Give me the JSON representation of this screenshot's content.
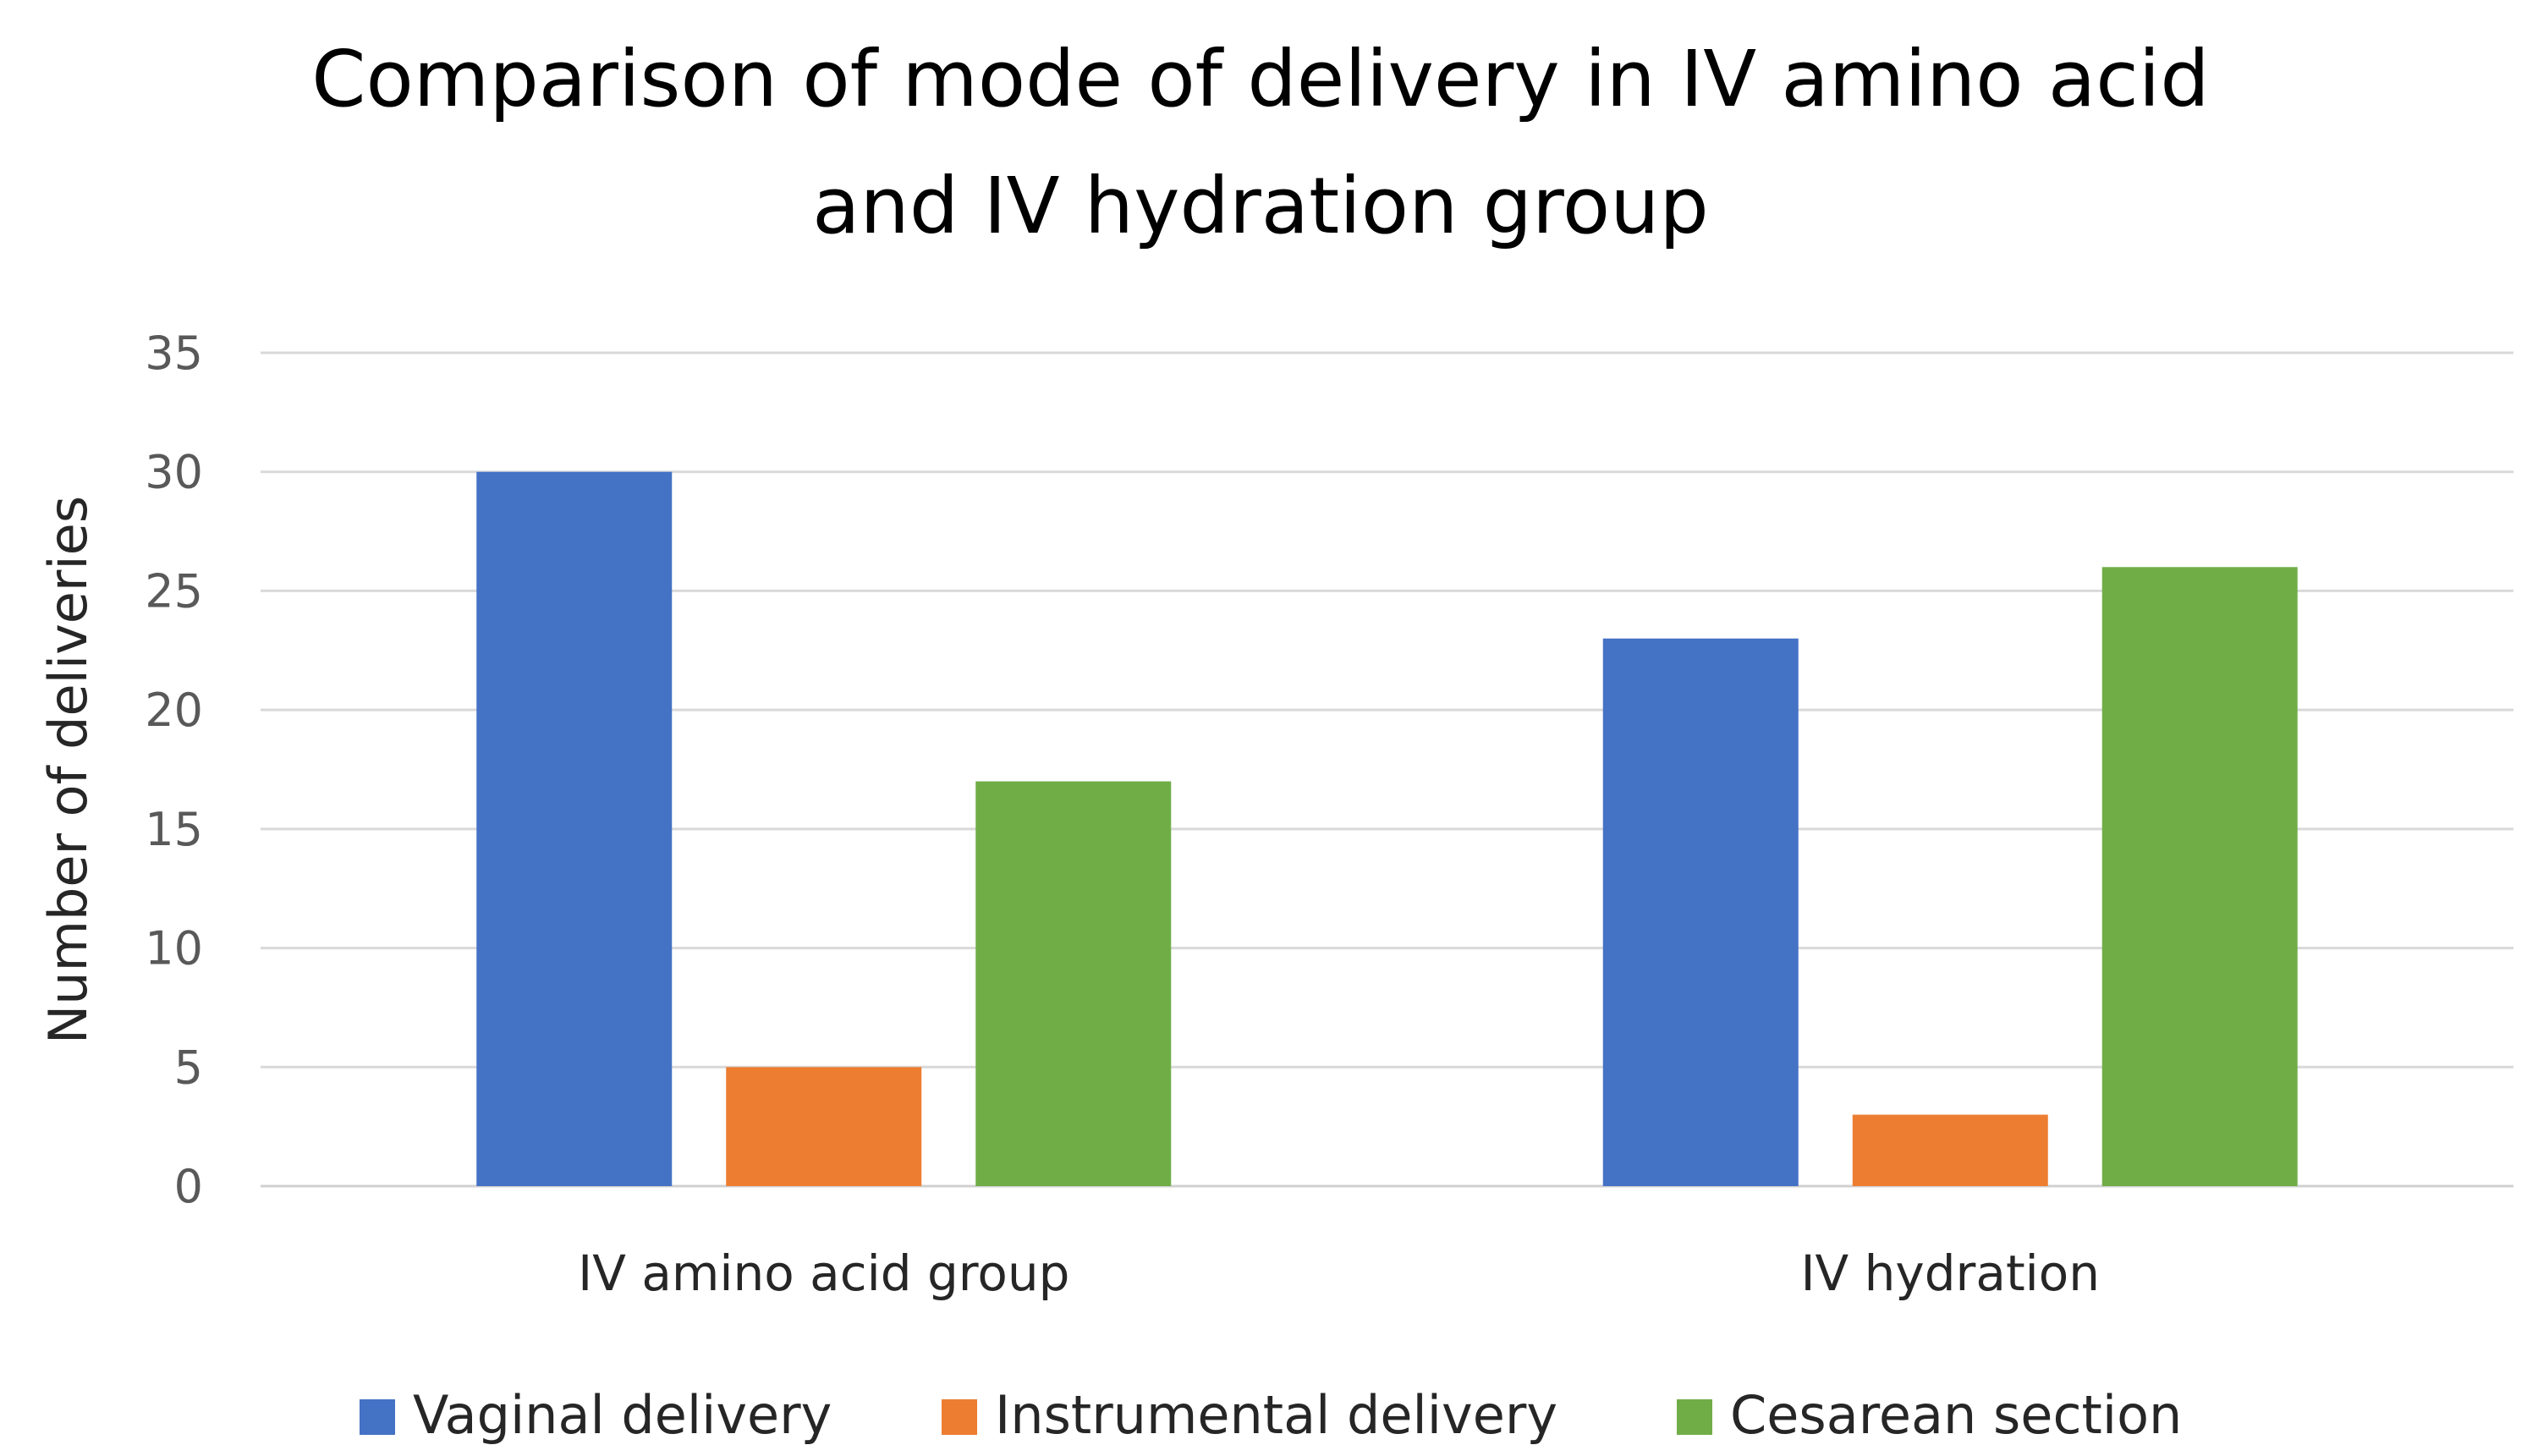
{
  "chart_data": {
    "type": "bar",
    "title_lines": [
      "Comparison of mode of delivery in IV amino acid",
      "and IV hydration group"
    ],
    "xlabel": "",
    "ylabel": "Number of deliveries",
    "ylim": [
      0,
      35
    ],
    "yticks": [
      0,
      5,
      10,
      15,
      20,
      25,
      30,
      35
    ],
    "grid": true,
    "legend_position": "bottom",
    "categories": [
      "IV amino acid group",
      "IV hydration"
    ],
    "series": [
      {
        "name": "Vaginal delivery",
        "color": "#4472C4",
        "values": [
          30,
          23
        ]
      },
      {
        "name": "Instrumental delivery",
        "color": "#ED7D31",
        "values": [
          5,
          3
        ]
      },
      {
        "name": "Cesarean section",
        "color": "#70AD47",
        "values": [
          17,
          26
        ]
      }
    ]
  }
}
